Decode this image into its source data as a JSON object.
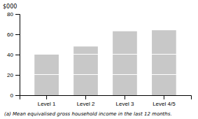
{
  "chart_data": {
    "type": "bar",
    "stacked": true,
    "categories": [
      "Level 1",
      "Level 2",
      "Level 3",
      "Level 4/5"
    ],
    "series": [
      {
        "color": "#c8c8c8",
        "values": [
          20,
          20,
          20,
          20
        ]
      },
      {
        "color": "#c8c8c8",
        "values": [
          20,
          20,
          20,
          20
        ]
      },
      {
        "color": "#c8c8c8",
        "values": [
          0,
          8,
          23,
          24
        ]
      }
    ],
    "ylabel": "$000",
    "footnote": "(a) Mean equivalised gross household income in the last 12 months.",
    "ylim": [
      0,
      80
    ],
    "yticks": [
      0,
      20,
      40,
      60,
      80
    ],
    "grid": false
  }
}
